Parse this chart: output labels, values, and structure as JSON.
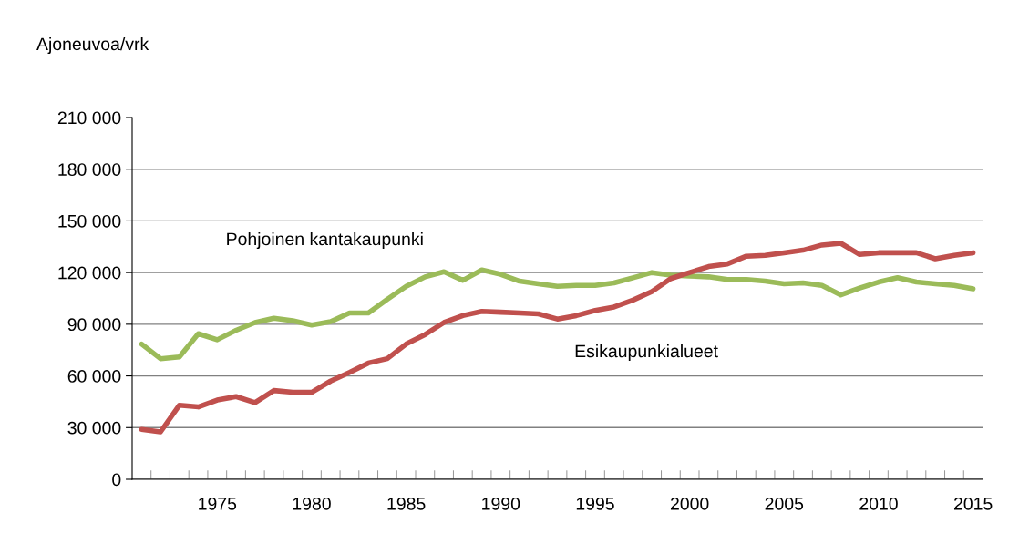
{
  "chart_data": {
    "type": "line",
    "ylabel": "Ajoneuvoa/vrk",
    "categories": [
      null,
      null,
      null,
      null,
      "1975",
      null,
      null,
      null,
      null,
      "1980",
      null,
      null,
      null,
      null,
      "1985",
      null,
      null,
      null,
      null,
      "1990",
      null,
      null,
      null,
      null,
      "1995",
      null,
      null,
      null,
      null,
      "2000",
      null,
      null,
      null,
      null,
      "2005",
      null,
      null,
      null,
      null,
      "2010",
      null,
      null,
      null,
      null,
      "2015"
    ],
    "series": [
      {
        "name": "Pohjoinen kantakaupunki",
        "color": "#9bbb59",
        "values": [
          78500,
          70000,
          71000,
          84500,
          81000,
          86500,
          91000,
          93500,
          92000,
          89500,
          91500,
          96500,
          96500,
          104500,
          112000,
          117500,
          120500,
          115500,
          121500,
          119000,
          115000,
          113500,
          112000,
          112500,
          112500,
          114000,
          117000,
          120000,
          118500,
          118000,
          117500,
          116000,
          116000,
          115000,
          113500,
          114000,
          112500,
          107000,
          111000,
          114500,
          117000,
          114500,
          113500,
          112500,
          110500
        ]
      },
      {
        "name": "Esikaupunkialueet",
        "color": "#c0504d",
        "values": [
          29000,
          27500,
          43000,
          42000,
          46000,
          48000,
          44500,
          51500,
          50500,
          50500,
          57000,
          62000,
          67500,
          70000,
          78500,
          84000,
          91000,
          95000,
          97500,
          97000,
          96500,
          96000,
          93000,
          95000,
          98000,
          100000,
          104000,
          109000,
          116500,
          120000,
          123500,
          125000,
          129500,
          130000,
          131500,
          133000,
          136000,
          137000,
          130500,
          131500,
          131500,
          131500,
          128000,
          130000,
          131500
        ]
      }
    ],
    "ylim": [
      0,
      210000
    ],
    "yticks": [
      {
        "value": 0,
        "label": "0"
      },
      {
        "value": 30000,
        "label": "30 000"
      },
      {
        "value": 60000,
        "label": "60 000"
      },
      {
        "value": 90000,
        "label": "90 000"
      },
      {
        "value": 120000,
        "label": "120 000"
      },
      {
        "value": 150000,
        "label": "150 000"
      },
      {
        "value": 180000,
        "label": "180 000"
      },
      {
        "value": 210000,
        "label": "210 000"
      }
    ],
    "grid": "y",
    "legend": false,
    "marker": "none",
    "line_style": "solid"
  }
}
